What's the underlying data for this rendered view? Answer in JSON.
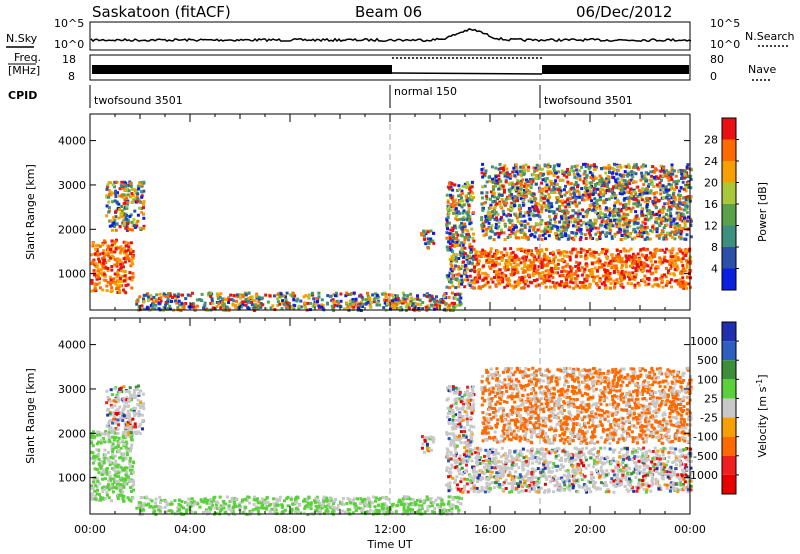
{
  "header": {
    "station": "Saskatoon (fitACF)",
    "beam": "Beam 06",
    "date": "06/Dec/2012"
  },
  "noise_panel": {
    "left_label": "N.Sky",
    "left_ticks": [
      "10^5",
      "10^0"
    ],
    "right_ticks": [
      "10^5",
      "10^0"
    ],
    "right_label": "N.Search"
  },
  "freq_panel": {
    "left_label_1": "Freq.",
    "left_label_2": "[MHz]",
    "left_ticks": [
      "18",
      "8"
    ],
    "right_ticks": [
      "80",
      "0"
    ],
    "right_label": "Nave"
  },
  "cpid_panel": {
    "label": "CPID",
    "segments": [
      {
        "name": "twofsound 3501",
        "start_hour": 0
      },
      {
        "name": "normal 150",
        "start_hour": 12
      },
      {
        "name": "twofsound 3501",
        "start_hour": 18
      }
    ]
  },
  "chart_data": [
    {
      "type": "heatmap",
      "quantity": "Power",
      "ylabel": "Slant Range [km]",
      "xlabel": "Time UT",
      "xlim_hours": [
        0,
        24
      ],
      "ylim": [
        180,
        4600
      ],
      "y_ticks": [
        "1000",
        "2000",
        "3000",
        "4000"
      ],
      "colorbar_label": "Power [dB]",
      "colorbar_ticks": [
        "4",
        "8",
        "12",
        "16",
        "20",
        "24",
        "28"
      ],
      "colors": [
        "#0a1fe0",
        "#2c4fa8",
        "#3f8f7f",
        "#5aa24a",
        "#a8c83a",
        "#f5a000",
        "#ff6a00",
        "#e81010"
      ],
      "mode_boundaries_hours": [
        12,
        18
      ],
      "echo_regions": [
        {
          "name": "early-morning-echo",
          "t_start": 0.0,
          "t_end": 1.7,
          "r_start": 600,
          "r_end": 1800
        },
        {
          "name": "early-morning-upper-echo",
          "t_start": 0.6,
          "t_end": 2.1,
          "r_start": 2000,
          "r_end": 3100
        },
        {
          "name": "near-range-band",
          "t_start": 1.8,
          "t_end": 14.8,
          "r_start": 200,
          "r_end": 600
        },
        {
          "name": "mid-echo",
          "t_start": 13.2,
          "t_end": 13.7,
          "r_start": 1600,
          "r_end": 2000
        },
        {
          "name": "rising-echo",
          "t_start": 14.2,
          "t_end": 15.3,
          "r_start": 700,
          "r_end": 3100
        },
        {
          "name": "evening-main-band",
          "t_start": 15.3,
          "t_end": 24.0,
          "r_start": 700,
          "r_end": 1600
        },
        {
          "name": "evening-upper-echo",
          "t_start": 15.6,
          "t_end": 24.0,
          "r_start": 1800,
          "r_end": 3500
        }
      ]
    },
    {
      "type": "heatmap",
      "quantity": "Velocity",
      "ylabel": "Slant Range [km]",
      "xlabel": "Time UT",
      "xlim_hours": [
        0,
        24
      ],
      "ylim": [
        180,
        4600
      ],
      "y_ticks": [
        "1000",
        "2000",
        "3000",
        "4000"
      ],
      "colorbar_label": "Velocity",
      "colorbar_unit": "[m s",
      "colorbar_unit_exp": "-1",
      "colorbar_unit_close": "]",
      "colorbar_ticks": [
        "1000",
        "500",
        "100",
        "25",
        "-25",
        "-100",
        "-500",
        "-1000"
      ],
      "colors": [
        "#1f2fb0",
        "#2c5fc0",
        "#3b8f3b",
        "#5ad03a",
        "#c8c8c8",
        "#f5a000",
        "#ff6a00",
        "#f02020",
        "#e80000"
      ],
      "mode_boundaries_hours": [
        12,
        18
      ],
      "x_ticks": [
        "00:00",
        "04:00",
        "08:00",
        "12:00",
        "16:00",
        "20:00",
        "00:00"
      ],
      "echo_regions": [
        {
          "name": "early-morning-echo",
          "t_start": 0.0,
          "t_end": 1.7,
          "r_start": 500,
          "r_end": 2100
        },
        {
          "name": "early-morning-upper-echo",
          "t_start": 0.6,
          "t_end": 2.1,
          "r_start": 2000,
          "r_end": 3100
        },
        {
          "name": "near-range-band",
          "t_start": 1.8,
          "t_end": 14.8,
          "r_start": 200,
          "r_end": 600
        },
        {
          "name": "mid-echo",
          "t_start": 13.2,
          "t_end": 13.7,
          "r_start": 1600,
          "r_end": 2000
        },
        {
          "name": "rising-echo",
          "t_start": 14.2,
          "t_end": 15.3,
          "r_start": 700,
          "r_end": 3100
        },
        {
          "name": "evening-main-band",
          "t_start": 15.3,
          "t_end": 24.0,
          "r_start": 700,
          "r_end": 1700
        },
        {
          "name": "evening-upper-echo",
          "t_start": 15.6,
          "t_end": 24.0,
          "r_start": 1800,
          "r_end": 3500
        }
      ]
    }
  ]
}
